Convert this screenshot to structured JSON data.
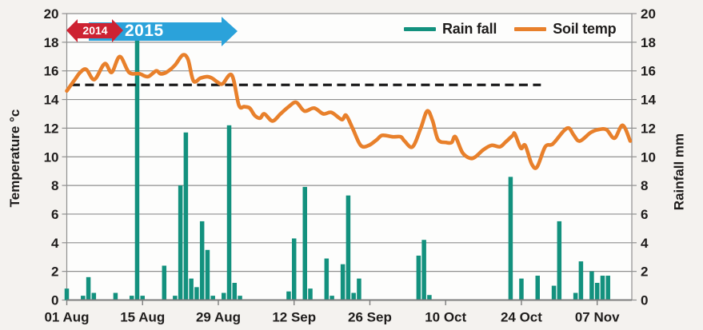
{
  "colors": {
    "rainfall_bar": "#13917e",
    "soil_temp_line": "#e8802b",
    "arrow_2015_blue": "#2ba2da",
    "arrow_2014_red": "#cd2232",
    "gridline": "#8f8f8f",
    "reference_dash": "#1c1c1c",
    "plot_background": "#fdfdfc",
    "page_background": "#f4f2ef",
    "text": "#1f1d1c"
  },
  "legend": {
    "rainfall_label": "Rain fall",
    "soiltemp_label": "Soil temp"
  },
  "annotations": {
    "year_2014": "2014",
    "year_2015": "2015"
  },
  "chart_data": {
    "type": "bar+line combo",
    "title": "",
    "left_axis": {
      "label": "Temperature °c",
      "min": 0,
      "max": 20,
      "tick_step": 2,
      "ticks": [
        0,
        2,
        4,
        6,
        8,
        10,
        12,
        14,
        16,
        18,
        20
      ]
    },
    "right_axis": {
      "label": "Rainfall mm",
      "min": 0,
      "max": 20,
      "tick_step": 2,
      "ticks": [
        0,
        2,
        4,
        6,
        8,
        10,
        12,
        14,
        16,
        18,
        20
      ]
    },
    "x_axis": {
      "note": "day 0 = 01 Aug; ticks every 14 days; plot extends to ~day 104",
      "ticks": [
        {
          "day": 0,
          "label": "01 Aug"
        },
        {
          "day": 14,
          "label": "15 Aug"
        },
        {
          "day": 28,
          "label": "29 Aug"
        },
        {
          "day": 42,
          "label": "12 Sep"
        },
        {
          "day": 56,
          "label": "26 Sep"
        },
        {
          "day": 70,
          "label": "10 Oct"
        },
        {
          "day": 84,
          "label": "24 Oct"
        },
        {
          "day": 98,
          "label": "07 Nov"
        }
      ],
      "day_range": [
        0,
        104.4
      ]
    },
    "reference_line": {
      "value": 15,
      "style": "dashed",
      "day_span": [
        0.8,
        87.6
      ]
    },
    "grid": true,
    "legend_position": "top-right",
    "series": [
      {
        "name": "Rain fall",
        "type": "bar",
        "axis": "right",
        "unit": "mm",
        "points": [
          {
            "date": "01 Aug",
            "day": 0,
            "mm": 0.8
          },
          {
            "date": "04 Aug",
            "day": 3,
            "mm": 0.3
          },
          {
            "date": "05 Aug",
            "day": 4,
            "mm": 1.6
          },
          {
            "date": "06 Aug",
            "day": 5,
            "mm": 0.5
          },
          {
            "date": "10 Aug",
            "day": 9,
            "mm": 0.5
          },
          {
            "date": "13 Aug",
            "day": 12,
            "mm": 0.3
          },
          {
            "date": "14 Aug",
            "day": 13,
            "mm": 18.6
          },
          {
            "date": "15 Aug",
            "day": 14,
            "mm": 0.3
          },
          {
            "date": "19 Aug",
            "day": 18,
            "mm": 2.4
          },
          {
            "date": "21 Aug",
            "day": 20,
            "mm": 0.3
          },
          {
            "date": "22 Aug",
            "day": 21,
            "mm": 8.0
          },
          {
            "date": "23 Aug",
            "day": 22,
            "mm": 11.7
          },
          {
            "date": "24 Aug",
            "day": 23,
            "mm": 1.5
          },
          {
            "date": "25 Aug",
            "day": 24,
            "mm": 0.9
          },
          {
            "date": "26 Aug",
            "day": 25,
            "mm": 5.5
          },
          {
            "date": "27 Aug",
            "day": 26,
            "mm": 3.5
          },
          {
            "date": "28 Aug",
            "day": 27,
            "mm": 0.3
          },
          {
            "date": "30 Aug",
            "day": 29,
            "mm": 0.5
          },
          {
            "date": "31 Aug",
            "day": 30,
            "mm": 12.2
          },
          {
            "date": "01 Sep",
            "day": 31,
            "mm": 1.2
          },
          {
            "date": "02 Sep",
            "day": 32,
            "mm": 0.3
          },
          {
            "date": "11 Sep",
            "day": 41,
            "mm": 0.6
          },
          {
            "date": "12 Sep",
            "day": 42,
            "mm": 4.3
          },
          {
            "date": "14 Sep",
            "day": 44,
            "mm": 7.9
          },
          {
            "date": "15 Sep",
            "day": 45,
            "mm": 0.8
          },
          {
            "date": "18 Sep",
            "day": 48,
            "mm": 2.9
          },
          {
            "date": "19 Sep",
            "day": 49,
            "mm": 0.3
          },
          {
            "date": "21 Sep",
            "day": 51,
            "mm": 2.5
          },
          {
            "date": "22 Sep",
            "day": 52,
            "mm": 7.3
          },
          {
            "date": "23 Sep",
            "day": 53,
            "mm": 0.5
          },
          {
            "date": "24 Sep",
            "day": 54,
            "mm": 1.5
          },
          {
            "date": "05 Oct",
            "day": 65,
            "mm": 3.1
          },
          {
            "date": "06 Oct",
            "day": 66,
            "mm": 4.2
          },
          {
            "date": "07 Oct",
            "day": 67,
            "mm": 0.35
          },
          {
            "date": "22 Oct",
            "day": 82,
            "mm": 8.6
          },
          {
            "date": "24 Oct",
            "day": 84,
            "mm": 1.5
          },
          {
            "date": "27 Oct",
            "day": 87,
            "mm": 1.7
          },
          {
            "date": "30 Oct",
            "day": 90,
            "mm": 1.0
          },
          {
            "date": "31 Oct",
            "day": 91,
            "mm": 5.5
          },
          {
            "date": "03 Nov",
            "day": 94,
            "mm": 0.5
          },
          {
            "date": "04 Nov",
            "day": 95,
            "mm": 2.7
          },
          {
            "date": "06 Nov",
            "day": 97,
            "mm": 2.0
          },
          {
            "date": "07 Nov",
            "day": 98,
            "mm": 1.2
          },
          {
            "date": "08 Nov",
            "day": 99,
            "mm": 1.7
          },
          {
            "date": "09 Nov",
            "day": 100,
            "mm": 1.7
          }
        ]
      },
      {
        "name": "Soil temp",
        "type": "line",
        "axis": "left",
        "unit": "°c",
        "points_day_temp": [
          [
            0,
            14.6
          ],
          [
            1.5,
            15.4
          ],
          [
            2.5,
            15.9
          ],
          [
            3.6,
            16.1
          ],
          [
            5.1,
            15.4
          ],
          [
            7,
            16.5
          ],
          [
            8.3,
            15.9
          ],
          [
            9.8,
            17.0
          ],
          [
            11.5,
            15.9
          ],
          [
            13.4,
            15.8
          ],
          [
            15,
            15.6
          ],
          [
            16.5,
            16.0
          ],
          [
            17.3,
            15.8
          ],
          [
            18.4,
            15.9
          ],
          [
            20,
            16.4
          ],
          [
            21.4,
            17.1
          ],
          [
            22.4,
            16.8
          ],
          [
            23.4,
            15.3
          ],
          [
            24.7,
            15.5
          ],
          [
            25.9,
            15.6
          ],
          [
            26.8,
            15.5
          ],
          [
            27.9,
            15.2
          ],
          [
            28.8,
            15.1
          ],
          [
            30.5,
            15.7
          ],
          [
            31.8,
            13.6
          ],
          [
            32.8,
            13.5
          ],
          [
            33.8,
            13.4
          ],
          [
            34.7,
            12.9
          ],
          [
            35.7,
            12.7
          ],
          [
            36.5,
            13.0
          ],
          [
            38,
            12.5
          ],
          [
            39.5,
            13.0
          ],
          [
            41,
            13.5
          ],
          [
            42.4,
            13.8
          ],
          [
            43.9,
            13.2
          ],
          [
            45.7,
            13.4
          ],
          [
            47.4,
            13.0
          ],
          [
            48.9,
            13.1
          ],
          [
            50.8,
            12.6
          ],
          [
            51.6,
            12.9
          ],
          [
            52.8,
            12.0
          ],
          [
            54.3,
            10.8
          ],
          [
            55.8,
            10.8
          ],
          [
            57.3,
            11.2
          ],
          [
            58.3,
            11.5
          ],
          [
            60.2,
            11.4
          ],
          [
            61.7,
            11.4
          ],
          [
            62.4,
            11.1
          ],
          [
            63.9,
            10.7
          ],
          [
            65.4,
            12.0
          ],
          [
            66.6,
            13.2
          ],
          [
            67.6,
            12.5
          ],
          [
            68.6,
            11.2
          ],
          [
            70.1,
            11.0
          ],
          [
            71.1,
            11.0
          ],
          [
            71.8,
            11.4
          ],
          [
            73.1,
            10.3
          ],
          [
            74.5,
            9.9
          ],
          [
            75.5,
            10.0
          ],
          [
            77,
            10.5
          ],
          [
            78.5,
            10.8
          ],
          [
            80,
            10.7
          ],
          [
            81,
            11.0
          ],
          [
            82.4,
            11.5
          ],
          [
            82.8,
            11.6
          ],
          [
            83.9,
            10.6
          ],
          [
            84.7,
            10.8
          ],
          [
            85.9,
            9.5
          ],
          [
            86.9,
            9.3
          ],
          [
            88.4,
            10.7
          ],
          [
            89.8,
            10.9
          ],
          [
            91.8,
            11.8
          ],
          [
            92.8,
            12.0
          ],
          [
            93.7,
            11.5
          ],
          [
            94.8,
            11.1
          ],
          [
            96.8,
            11.7
          ],
          [
            98.2,
            11.9
          ],
          [
            99.7,
            11.9
          ],
          [
            101.2,
            11.3
          ],
          [
            102.7,
            12.2
          ],
          [
            104.1,
            11.1
          ]
        ]
      }
    ]
  }
}
